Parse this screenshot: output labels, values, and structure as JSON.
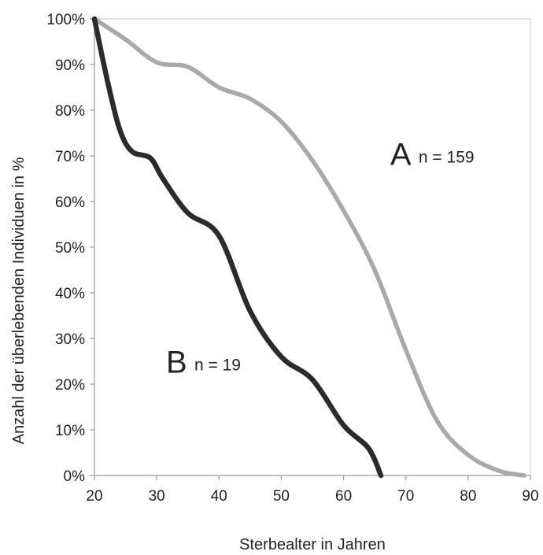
{
  "chart_data": {
    "type": "line",
    "title": "",
    "xlabel": "Sterbealter in Jahren",
    "ylabel": "Anzahl der überlebenden Individuen in %",
    "xlim": [
      20,
      90
    ],
    "ylim": [
      0,
      100
    ],
    "x_ticks": [
      "20",
      "30",
      "40",
      "50",
      "60",
      "70",
      "80",
      "90"
    ],
    "y_ticks": [
      "0%",
      "10%",
      "20%",
      "30%",
      "40%",
      "50%",
      "60%",
      "70%",
      "80%",
      "90%",
      "100%"
    ],
    "grid": false,
    "series": [
      {
        "name": "A",
        "label_letter": "A",
        "label_n": "n = 159",
        "color": "#a9a9a9",
        "x": [
          20,
          25,
          30,
          35,
          40,
          45,
          50,
          55,
          60,
          65,
          70,
          75,
          80,
          85,
          89
        ],
        "y": [
          100,
          95.5,
          90.5,
          89.5,
          85,
          82.5,
          77.5,
          69,
          58,
          45,
          27.5,
          12,
          4.5,
          1,
          0
        ]
      },
      {
        "name": "B",
        "label_letter": "B",
        "label_n": "n = 19",
        "color": "#2b2b2b",
        "x": [
          20,
          22,
          24,
          26,
          29,
          31,
          35,
          40,
          45,
          50,
          55,
          60,
          64,
          66
        ],
        "y": [
          100,
          87,
          76,
          71,
          69.5,
          65,
          57.5,
          52.5,
          36,
          26,
          21,
          11,
          6,
          0
        ]
      }
    ]
  }
}
